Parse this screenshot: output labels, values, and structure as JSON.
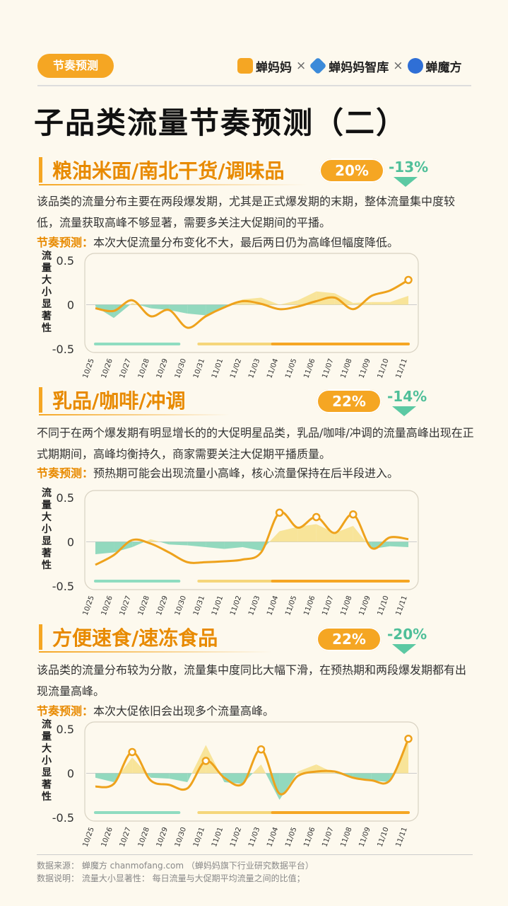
{
  "header": {
    "tag": "节奏预测",
    "logos": [
      {
        "name": "蝉妈妈",
        "color": "#f5a623"
      },
      {
        "name": "蝉妈妈智库",
        "color": "#3b8ad9"
      },
      {
        "name": "蝉魔方",
        "color": "#2f6fd6"
      }
    ],
    "separator": "×"
  },
  "title": "子品类流量节奏预测（二）",
  "sections": [
    {
      "title": "粮油米面/南北干货/调味品",
      "percent": "20%",
      "change": "-13%",
      "desc": "该品类的流量分布主要在两段爆发期，尤其是正式爆发期的末期，整体流量集中度较低，流量获取高峰不够显著，需要多关注大促期间的平播。",
      "pred_label": "节奏预测：",
      "pred_text": "本次大促流量分布变化不大，最后两日仍为高峰但幅度降低。"
    },
    {
      "title": "乳品/咖啡/冲调",
      "percent": "22%",
      "change": "-14%",
      "desc": "不同于在两个爆发期有明显增长的的大促明星品类，乳品/咖啡/冲调的流量高峰出现在正式期期间，高峰均衡持久，商家需要关注大促期平播质量。",
      "pred_label": "节奏预测：",
      "pred_text": "预热期可能会出现流量小高峰，核心流量保持在后半段进入。"
    },
    {
      "title": "方便速食/速冻食品",
      "percent": "22%",
      "change": "-20%",
      "desc": "该品类的流量分布较为分散，流量集中度同比大幅下滑，在预热期和两段爆发期都有出现流量高峰。",
      "pred_label": "节奏预测：",
      "pred_text": "本次大促依旧会出现多个流量高峰。"
    }
  ],
  "chart_data": [
    {
      "type": "area",
      "ylabel": "流量大小显著性",
      "ylim": [
        -0.5,
        0.5
      ],
      "yticks": [
        "0.5",
        "0",
        "-0.5"
      ],
      "categories": [
        "10/25",
        "10/26",
        "10/27",
        "10/28",
        "10/29",
        "10/30",
        "10/31",
        "11/01",
        "11/02",
        "11/03",
        "11/04",
        "11/05",
        "11/06",
        "11/07",
        "11/08",
        "11/09",
        "11/10",
        "11/11"
      ],
      "series": [
        {
          "style": "line",
          "values": [
            -0.04,
            -0.07,
            0.05,
            -0.13,
            -0.06,
            -0.26,
            -0.13,
            -0.03,
            0.04,
            0.01,
            -0.05,
            -0.02,
            0.04,
            0.08,
            -0.05,
            0.1,
            0.16,
            0.28
          ]
        },
        {
          "style": "area",
          "values": [
            -0.02,
            -0.15,
            0.02,
            -0.04,
            -0.06,
            -0.1,
            -0.12,
            -0.03,
            0.06,
            0.08,
            0.0,
            0.05,
            0.15,
            0.13,
            0.02,
            0.03,
            0.03,
            0.1
          ]
        }
      ],
      "phase_colors": [
        "#8fdcc0",
        "#f5d67a",
        "#f5a623"
      ]
    },
    {
      "type": "area",
      "ylabel": "流量大小显著性",
      "ylim": [
        -0.5,
        0.5
      ],
      "yticks": [
        "0.5",
        "0",
        "-0.5"
      ],
      "categories": [
        "10/25",
        "10/26",
        "10/27",
        "10/28",
        "10/29",
        "10/30",
        "10/31",
        "11/01",
        "11/02",
        "11/03",
        "11/04",
        "11/05",
        "11/06",
        "11/07",
        "11/08",
        "11/09",
        "11/10",
        "11/11"
      ],
      "series": [
        {
          "style": "line",
          "values": [
            -0.26,
            -0.15,
            0.02,
            -0.02,
            -0.12,
            -0.23,
            -0.23,
            -0.22,
            -0.2,
            -0.12,
            0.33,
            0.16,
            0.28,
            0.1,
            0.31,
            -0.07,
            0.05,
            0.03
          ]
        },
        {
          "style": "area",
          "values": [
            -0.14,
            -0.12,
            -0.06,
            0.03,
            -0.03,
            -0.04,
            -0.06,
            -0.08,
            -0.06,
            -0.1,
            0.12,
            0.17,
            0.2,
            0.1,
            0.18,
            -0.08,
            -0.05,
            -0.06
          ]
        }
      ],
      "phase_colors": [
        "#8fdcc0",
        "#f5d67a",
        "#f5a623"
      ]
    },
    {
      "type": "area",
      "ylabel": "流量大小显著性",
      "ylim": [
        -0.5,
        0.5
      ],
      "yticks": [
        "0.5",
        "0",
        "-0.5"
      ],
      "categories": [
        "10/25",
        "10/26",
        "10/27",
        "10/28",
        "10/29",
        "10/30",
        "10/31",
        "11/01",
        "11/02",
        "11/03",
        "11/04",
        "11/05",
        "11/06",
        "11/07",
        "11/08",
        "11/09",
        "11/10",
        "11/11"
      ],
      "series": [
        {
          "style": "line",
          "values": [
            -0.15,
            -0.12,
            0.24,
            -0.08,
            -0.13,
            -0.17,
            0.14,
            -0.05,
            -0.12,
            0.27,
            -0.23,
            -0.03,
            0.02,
            0.02,
            -0.05,
            -0.08,
            -0.08,
            0.39
          ]
        },
        {
          "style": "area",
          "values": [
            -0.05,
            -0.1,
            0.18,
            -0.05,
            -0.06,
            -0.1,
            0.32,
            -0.1,
            -0.12,
            0.1,
            -0.3,
            0.02,
            0.1,
            0.0,
            -0.04,
            -0.08,
            -0.1,
            0.35
          ]
        }
      ],
      "phase_colors": [
        "#8fdcc0",
        "#f5d67a",
        "#f5a623"
      ]
    }
  ],
  "footer": {
    "source": "数据来源：  蝉魔方 chanmofang.com （蝉妈妈旗下行业研究数据平台）",
    "note": "数据说明：  流量大小显著性：  每日流量与大促期平均流量之间的比值；"
  }
}
